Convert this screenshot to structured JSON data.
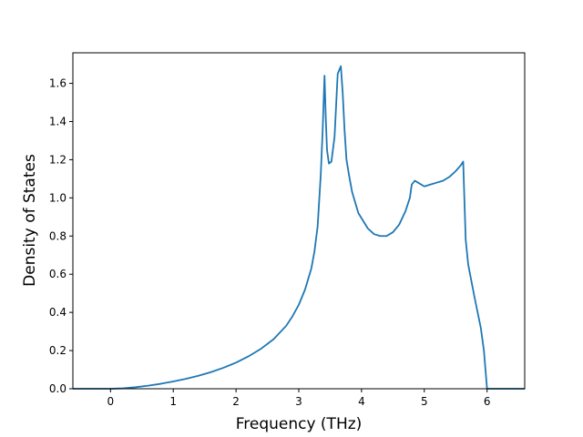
{
  "chart_data": {
    "type": "line",
    "xlabel": "Frequency (THz)",
    "ylabel": "Density of States",
    "xlim": [
      -0.6,
      6.6
    ],
    "ylim": [
      0.0,
      1.76
    ],
    "xticks": [
      0,
      1,
      2,
      3,
      4,
      5,
      6
    ],
    "yticks": [
      0.0,
      0.2,
      0.4,
      0.6,
      0.8,
      1.0,
      1.2,
      1.4,
      1.6
    ],
    "xtick_labels": [
      "0",
      "1",
      "2",
      "3",
      "4",
      "5",
      "6"
    ],
    "ytick_labels": [
      "0.0",
      "0.2",
      "0.4",
      "0.6",
      "0.8",
      "1.0",
      "1.2",
      "1.4",
      "1.6"
    ],
    "grid": false,
    "line_color": "#1f77b4",
    "series": [
      {
        "x": [
          -0.6,
          -0.3,
          0.0,
          0.2,
          0.4,
          0.6,
          0.8,
          1.0,
          1.2,
          1.4,
          1.6,
          1.8,
          2.0,
          2.2,
          2.4,
          2.6,
          2.8,
          2.9,
          3.0,
          3.1,
          3.2,
          3.25,
          3.3,
          3.35,
          3.38,
          3.41,
          3.43,
          3.45,
          3.48,
          3.52,
          3.57,
          3.62,
          3.67,
          3.7,
          3.73,
          3.76,
          3.8,
          3.85,
          3.95,
          4.1,
          4.2,
          4.3,
          4.4,
          4.5,
          4.6,
          4.7,
          4.77,
          4.8,
          4.85,
          4.9,
          5.0,
          5.1,
          5.2,
          5.3,
          5.4,
          5.5,
          5.58,
          5.62,
          5.64,
          5.66,
          5.7,
          5.8,
          5.9,
          5.95,
          6.0,
          6.2,
          6.6
        ],
        "y": [
          0.0,
          0.0,
          0.0,
          0.002,
          0.008,
          0.016,
          0.026,
          0.038,
          0.052,
          0.068,
          0.087,
          0.11,
          0.137,
          0.17,
          0.21,
          0.26,
          0.33,
          0.38,
          0.44,
          0.52,
          0.63,
          0.72,
          0.85,
          1.12,
          1.35,
          1.64,
          1.42,
          1.25,
          1.18,
          1.19,
          1.32,
          1.65,
          1.69,
          1.55,
          1.35,
          1.2,
          1.12,
          1.03,
          0.92,
          0.84,
          0.81,
          0.8,
          0.8,
          0.82,
          0.86,
          0.93,
          1.0,
          1.07,
          1.09,
          1.08,
          1.06,
          1.07,
          1.08,
          1.09,
          1.11,
          1.14,
          1.17,
          1.19,
          0.98,
          0.78,
          0.65,
          0.48,
          0.32,
          0.2,
          0.0,
          0.0,
          0.0
        ]
      }
    ]
  }
}
